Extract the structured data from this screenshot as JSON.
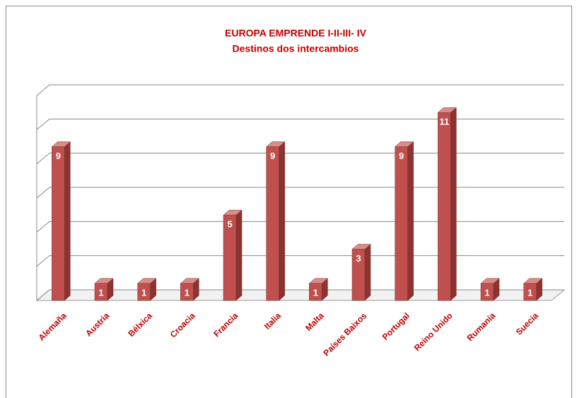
{
  "chart_data": {
    "type": "bar3d",
    "title": "EUROPA EMPRENDE I-II-III- IV",
    "subtitle": "Destinos dos intercambios",
    "categories": [
      "Alemaña",
      "Austria",
      "Bélxica",
      "Croacia",
      "Francia",
      "Italia",
      "Malta",
      "Países Baixos",
      "Portugal",
      "Reino Unido",
      "Rumanía",
      "Suecia"
    ],
    "values": [
      9,
      1,
      1,
      1,
      5,
      9,
      1,
      3,
      9,
      11,
      1,
      1
    ],
    "color": "#c0504d",
    "ylim": [
      0,
      12
    ],
    "yticks": [
      0,
      2,
      4,
      6,
      8,
      10,
      12
    ],
    "grid": true
  }
}
